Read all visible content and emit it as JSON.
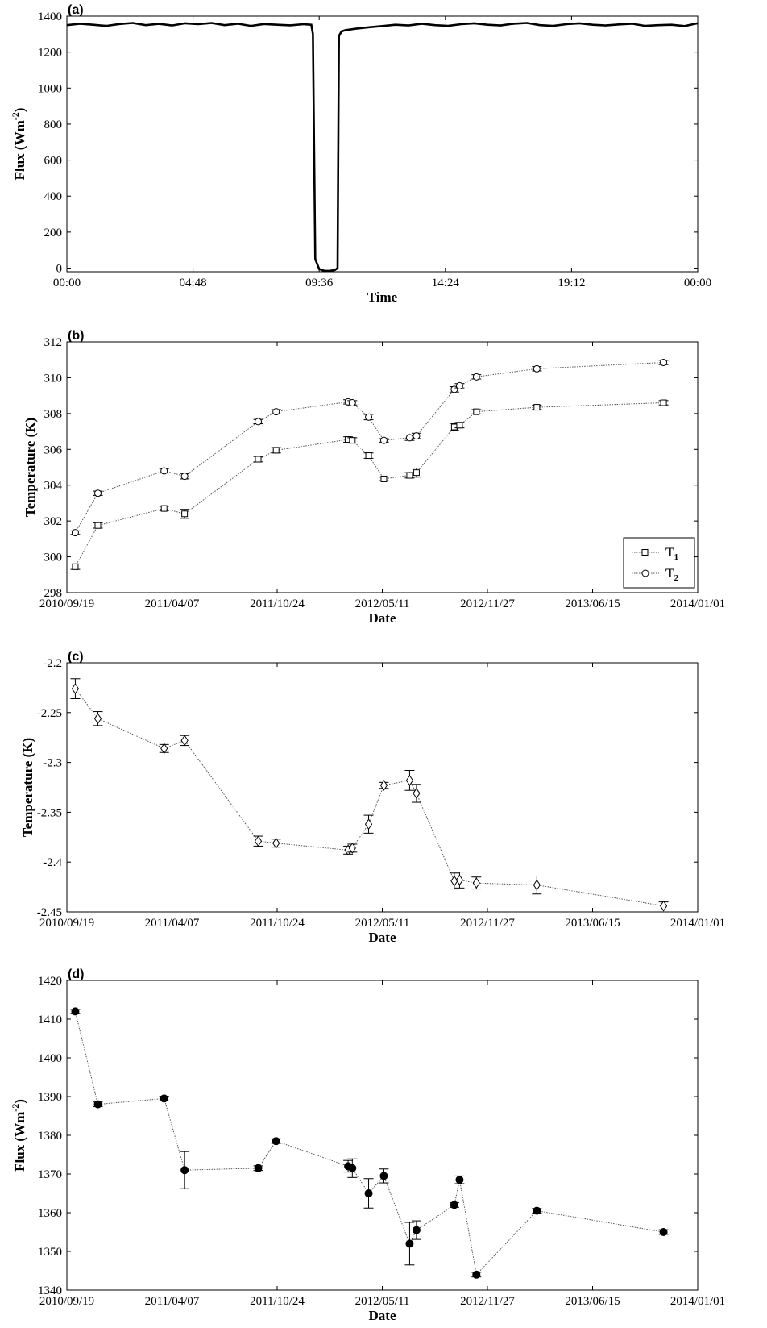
{
  "chart_data": [
    {
      "panel": "(a)",
      "type": "line",
      "xlabel": "Time",
      "ylabel": "Flux (Wm",
      "ylabel_sup": "-2",
      "ylabel_close": ")",
      "xticks": [
        "00:00",
        "04:48",
        "09:36",
        "14:24",
        "19:12",
        "00:00"
      ],
      "xlim": [
        0,
        24
      ],
      "ylim": [
        -20,
        1400
      ],
      "yticks": [
        0,
        200,
        400,
        600,
        800,
        1000,
        1200,
        1400
      ],
      "series": [
        {
          "x": [
            0,
            0.5,
            1,
            1.5,
            2,
            2.5,
            3,
            3.5,
            4,
            4.5,
            5,
            5.5,
            6,
            6.5,
            7,
            7.5,
            8,
            8.5,
            9,
            9.3,
            9.36,
            9.45,
            9.6,
            9.8,
            10.0,
            10.2,
            10.3,
            10.35,
            10.45,
            10.6,
            11,
            11.5,
            12,
            12.5,
            13,
            13.5,
            14,
            14.5,
            15,
            15.5,
            16,
            16.5,
            17,
            17.5,
            18,
            18.5,
            19,
            19.5,
            20,
            20.5,
            21,
            21.5,
            22,
            22.5,
            23,
            23.5,
            24
          ],
          "y": [
            1350,
            1358,
            1352,
            1346,
            1356,
            1362,
            1350,
            1357,
            1348,
            1360,
            1355,
            1362,
            1350,
            1358,
            1346,
            1356,
            1352,
            1349,
            1355,
            1352,
            1300,
            50,
            -5,
            -15,
            -15,
            -10,
            0,
            1290,
            1315,
            1322,
            1330,
            1338,
            1345,
            1352,
            1348,
            1358,
            1350,
            1346,
            1355,
            1360,
            1352,
            1348,
            1358,
            1362,
            1350,
            1346,
            1355,
            1360,
            1352,
            1348,
            1354,
            1358,
            1346,
            1350,
            1352,
            1345,
            1360
          ]
        }
      ]
    },
    {
      "panel": "(b)",
      "type": "line",
      "xlabel": "Date",
      "ylabel": "Temperature (K)",
      "xticks": [
        "2010/09/19",
        "2011/04/07",
        "2011/10/24",
        "2012/05/11",
        "2012/11/27",
        "2013/06/15",
        "2014/01/01"
      ],
      "xlim": [
        "2010-09-19",
        "2014-01-01"
      ],
      "ylim": [
        298,
        312
      ],
      "yticks": [
        298,
        300,
        302,
        304,
        306,
        308,
        310,
        312
      ],
      "legend": [
        "T",
        "T"
      ],
      "legend_sub": [
        "1",
        "2"
      ],
      "legend_position": "bottom-right",
      "series": [
        {
          "name": "T1",
          "marker": "square",
          "dates": [
            "2010-10-05",
            "2010-11-17",
            "2011-03-23",
            "2011-05-01",
            "2011-09-18",
            "2011-10-22",
            "2012-03-07",
            "2012-03-15",
            "2012-04-15",
            "2012-05-14",
            "2012-07-02",
            "2012-07-15",
            "2012-09-25",
            "2012-10-05",
            "2012-11-06",
            "2013-03-01",
            "2013-10-28"
          ],
          "y": [
            299.45,
            301.75,
            302.7,
            302.4,
            305.45,
            305.95,
            306.55,
            306.5,
            305.65,
            304.35,
            304.55,
            304.7,
            307.25,
            307.35,
            308.1,
            308.35,
            308.6
          ],
          "err": [
            0.15,
            0.15,
            0.12,
            0.25,
            0.15,
            0.15,
            0.15,
            0.15,
            0.15,
            0.1,
            0.15,
            0.25,
            0.2,
            0.15,
            0.12,
            0.12,
            0.12
          ]
        },
        {
          "name": "T2",
          "marker": "circle",
          "dates": [
            "2010-10-05",
            "2010-11-17",
            "2011-03-23",
            "2011-05-01",
            "2011-09-18",
            "2011-10-22",
            "2012-03-07",
            "2012-03-15",
            "2012-04-15",
            "2012-05-14",
            "2012-07-02",
            "2012-07-15",
            "2012-09-25",
            "2012-10-05",
            "2012-11-06",
            "2013-03-01",
            "2013-10-28"
          ],
          "y": [
            301.35,
            303.55,
            304.8,
            304.5,
            307.55,
            308.1,
            308.65,
            308.6,
            307.8,
            306.5,
            306.65,
            306.75,
            309.35,
            309.55,
            310.05,
            310.5,
            310.85
          ],
          "err": [
            0.1,
            0.12,
            0.12,
            0.15,
            0.12,
            0.12,
            0.12,
            0.12,
            0.15,
            0.1,
            0.15,
            0.15,
            0.15,
            0.12,
            0.12,
            0.12,
            0.12
          ]
        }
      ]
    },
    {
      "panel": "(c)",
      "type": "line",
      "xlabel": "Date",
      "ylabel": "Temperature (K)",
      "xticks": [
        "2010/09/19",
        "2011/04/07",
        "2011/10/24",
        "2012/05/11",
        "2012/11/27",
        "2013/06/15",
        "2014/01/01"
      ],
      "xlim": [
        "2010-09-19",
        "2014-01-01"
      ],
      "ylim": [
        -2.45,
        -2.2
      ],
      "yticks": [
        "-2.45",
        "-2.4",
        "-2.35",
        "-2.3",
        "-2.25",
        "-2.2"
      ],
      "series": [
        {
          "marker": "diamond",
          "dates": [
            "2010-10-05",
            "2010-11-17",
            "2011-03-23",
            "2011-05-01",
            "2011-09-18",
            "2011-10-22",
            "2012-03-07",
            "2012-03-15",
            "2012-04-15",
            "2012-05-14",
            "2012-07-02",
            "2012-07-15",
            "2012-09-25",
            "2012-10-05",
            "2012-11-06",
            "2013-03-01",
            "2013-10-28"
          ],
          "y": [
            -2.226,
            -2.256,
            -2.286,
            -2.278,
            -2.379,
            -2.381,
            -2.388,
            -2.386,
            -2.362,
            -2.323,
            -2.318,
            -2.331,
            -2.419,
            -2.418,
            -2.421,
            -2.423,
            -2.444
          ],
          "err": [
            0.01,
            0.007,
            0.004,
            0.005,
            0.005,
            0.004,
            0.004,
            0.004,
            0.009,
            0.003,
            0.01,
            0.009,
            0.008,
            0.008,
            0.006,
            0.009,
            0.004
          ]
        }
      ]
    },
    {
      "panel": "(d)",
      "type": "line",
      "xlabel": "Date",
      "ylabel": "Flux (Wm",
      "ylabel_sup": "-2",
      "ylabel_close": ")",
      "xticks": [
        "2010/09/19",
        "2011/04/07",
        "2011/10/24",
        "2012/05/11",
        "2012/11/27",
        "2013/06/15",
        "2014/01/01"
      ],
      "xlim": [
        "2010-09-19",
        "2014-01-01"
      ],
      "ylim": [
        1340,
        1420
      ],
      "yticks": [
        1340,
        1350,
        1360,
        1370,
        1380,
        1390,
        1400,
        1410,
        1420
      ],
      "series": [
        {
          "marker": "filled-circle",
          "dates": [
            "2010-10-05",
            "2010-11-17",
            "2011-03-23",
            "2011-05-01",
            "2011-09-18",
            "2011-10-22",
            "2012-03-07",
            "2012-03-15",
            "2012-04-15",
            "2012-05-14",
            "2012-07-02",
            "2012-07-15",
            "2012-09-25",
            "2012-10-05",
            "2012-11-06",
            "2013-03-01",
            "2013-10-28"
          ],
          "y": [
            1412,
            1388,
            1389.5,
            1371,
            1371.5,
            1378.5,
            1372,
            1371.5,
            1365,
            1369.5,
            1352,
            1355.5,
            1362,
            1368.5,
            1344,
            1360.5,
            1355
          ],
          "err": [
            0.5,
            0.6,
            0.6,
            4.8,
            0.6,
            0.6,
            1.5,
            2.4,
            3.8,
            1.8,
            5.5,
            2.4,
            0.6,
            1.0,
            0.6,
            0.6,
            0.6
          ]
        }
      ]
    }
  ]
}
